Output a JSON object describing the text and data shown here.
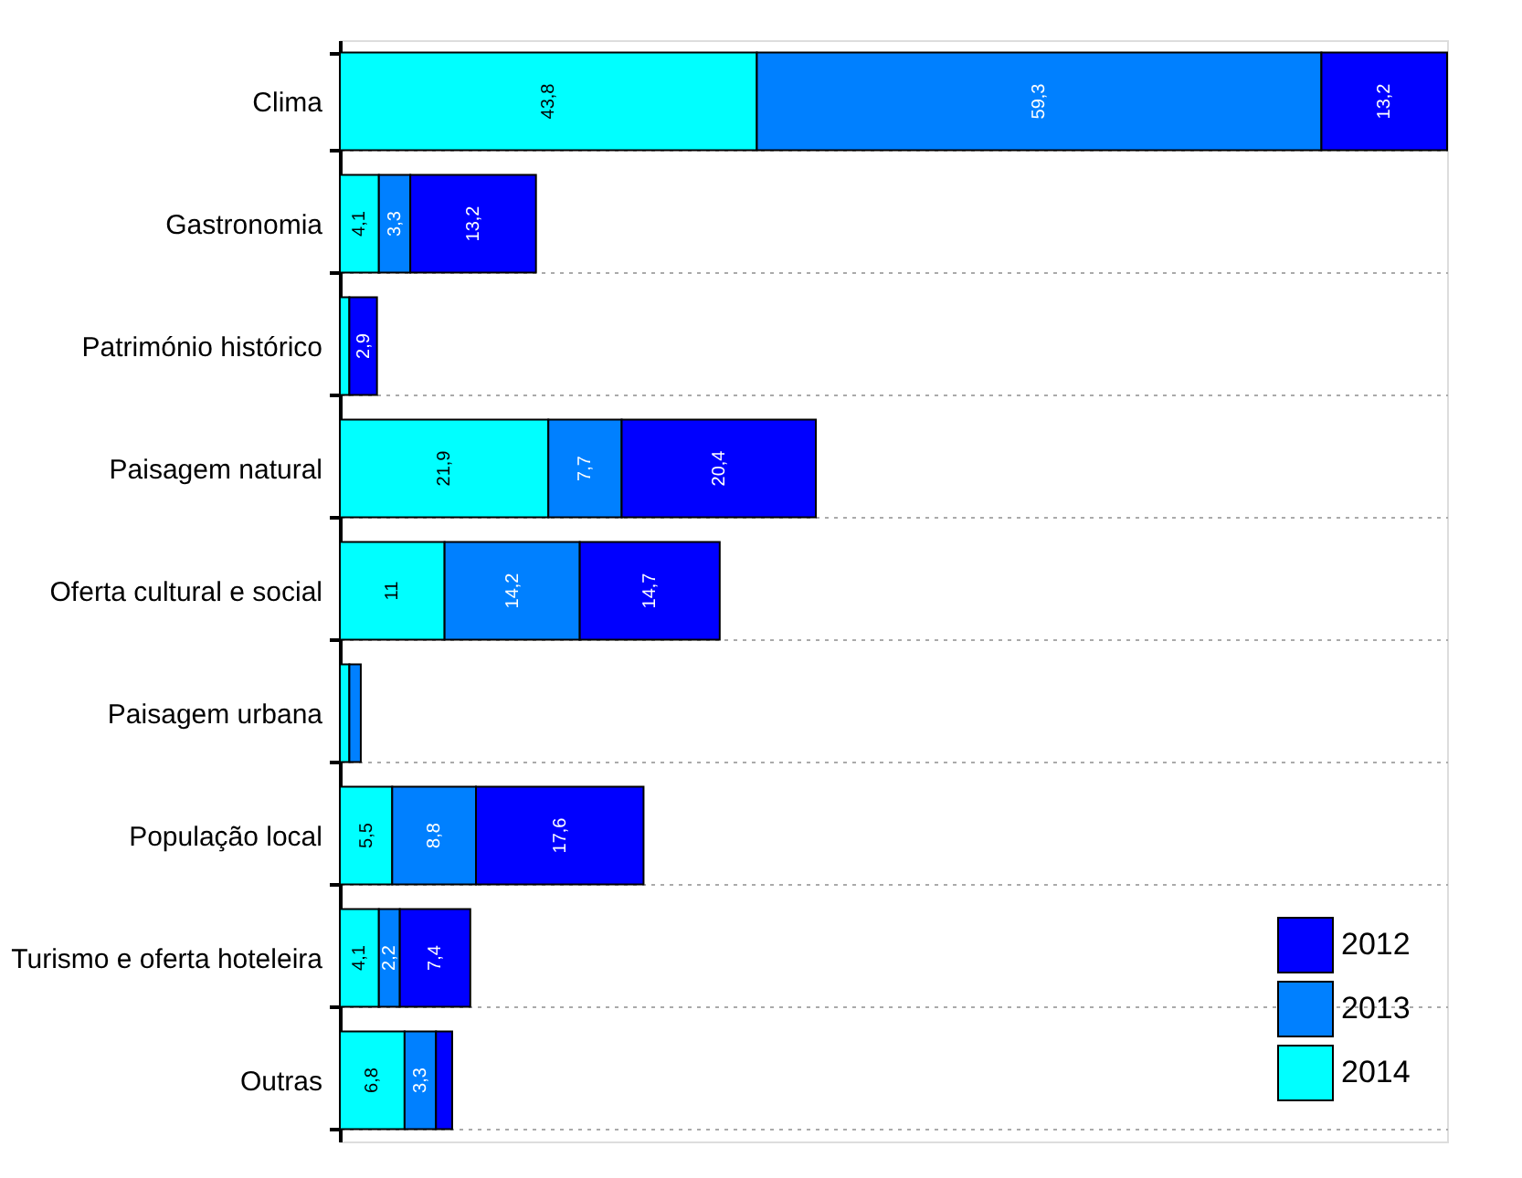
{
  "chart_data": {
    "type": "bar",
    "orientation": "horizontal",
    "stacked": true,
    "grid": "y",
    "legend": "bottom right",
    "categories": [
      "Clima",
      "Gastronomia",
      "Património histórico",
      "Paisagem natural",
      "Oferta cultural e social",
      "Paisagem urbana",
      "População local",
      "Turismo e oferta hoteleira",
      "Outras"
    ],
    "series": [
      {
        "name": "2014",
        "color": "#00ffff",
        "values": [
          43.8,
          4.1,
          1.0,
          21.9,
          11,
          1.0,
          5.5,
          4.1,
          6.8
        ],
        "value_labels": [
          "43,8",
          "4,1",
          null,
          "21,9",
          "11",
          null,
          "5,5",
          "4,1",
          "6,8"
        ]
      },
      {
        "name": "2013",
        "color": "#0080ff",
        "values": [
          59.3,
          3.3,
          0,
          7.7,
          14.2,
          1.2,
          8.8,
          2.2,
          3.3
        ],
        "value_labels": [
          "59,3",
          "3,3",
          null,
          "7,7",
          "14,2",
          null,
          "8,8",
          "2,2",
          "3,3"
        ]
      },
      {
        "name": "2012",
        "color": "#0000ff",
        "values": [
          13.2,
          13.2,
          2.9,
          20.4,
          14.7,
          0,
          17.6,
          7.4,
          1.7
        ],
        "value_labels": [
          "13,2",
          "13,2",
          "2,9",
          "20,4",
          "14,7",
          null,
          "17,6",
          "7,4",
          null
        ]
      }
    ]
  }
}
